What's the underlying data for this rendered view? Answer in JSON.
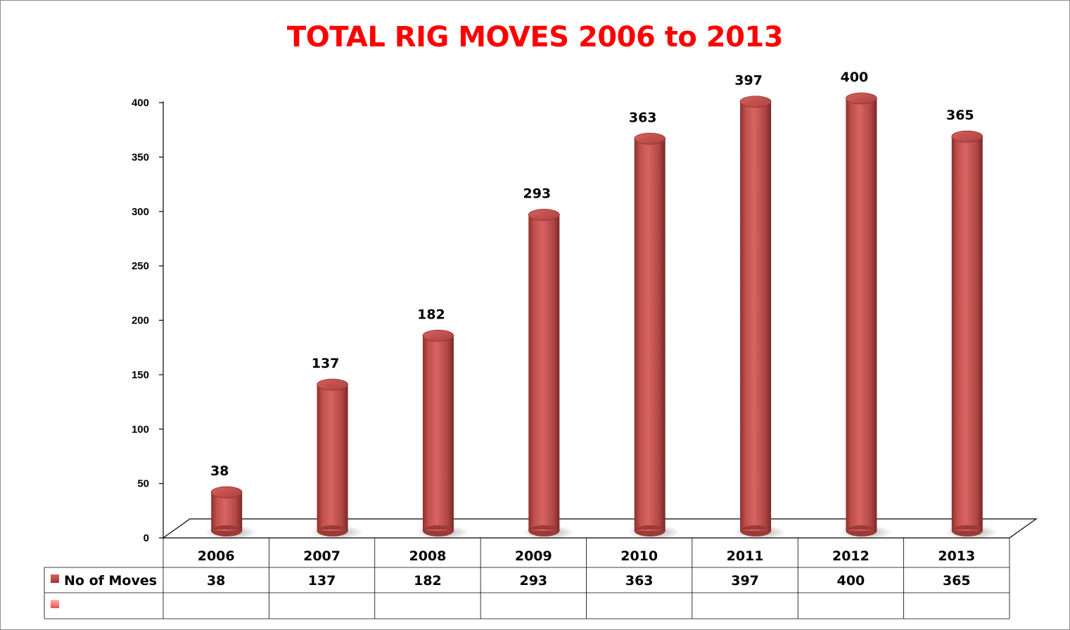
{
  "colors": {
    "title": "#ff0000",
    "bar": "#c0504d",
    "bar_light": "#e07b78",
    "bar_dark": "#7a2826",
    "legend_key_2": "#f07a78"
  },
  "chart_data": {
    "type": "bar",
    "style": "3d-cylinder",
    "title": "TOTAL RIG MOVES 2006 to 2013",
    "categories": [
      "2006",
      "2007",
      "2008",
      "2009",
      "2010",
      "2011",
      "2012",
      "2013"
    ],
    "series": [
      {
        "name": "No of Moves",
        "values": [
          38,
          137,
          182,
          293,
          363,
          397,
          400,
          365
        ]
      }
    ],
    "empty_series_rows": 1,
    "ylim": [
      0,
      400
    ],
    "yticks": [
      "0",
      "50",
      "100",
      "150",
      "200",
      "250",
      "300",
      "350",
      "400"
    ],
    "data_table": true,
    "grid": false,
    "legend": "data-table"
  }
}
